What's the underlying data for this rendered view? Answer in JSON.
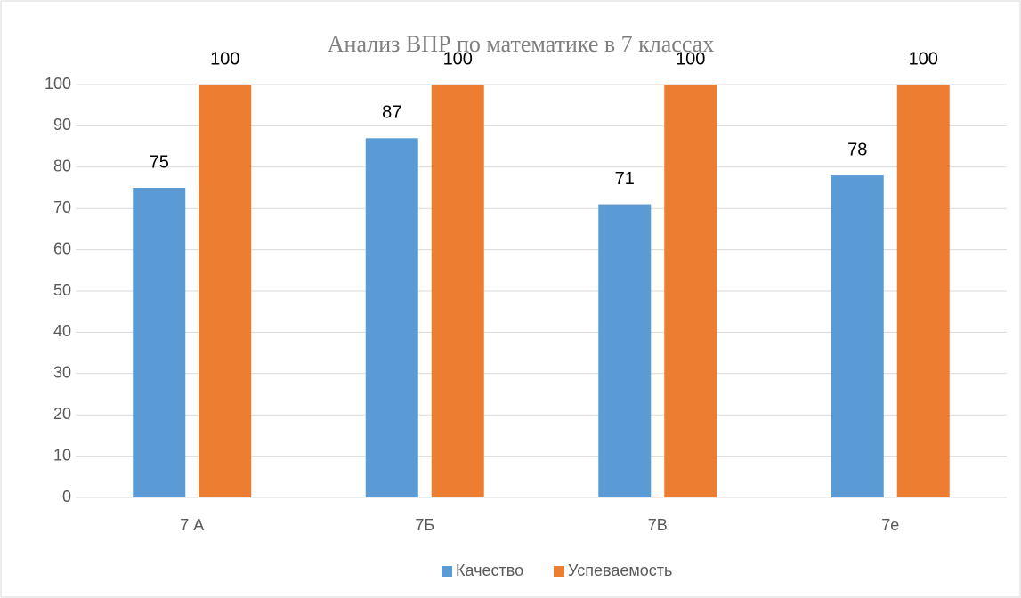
{
  "chart_data": {
    "type": "bar",
    "title": "Анализ ВПР по математике в 7 классах",
    "categories": [
      "7 А",
      "7Б",
      "7В",
      "7е"
    ],
    "series": [
      {
        "name": "Качество",
        "color": "#5b9bd5",
        "values": [
          75,
          87,
          71,
          78
        ]
      },
      {
        "name": "Успеваемость",
        "color": "#ed7d31",
        "values": [
          100,
          100,
          100,
          100
        ]
      }
    ],
    "ylim": [
      0,
      100
    ],
    "yticks": [
      0,
      10,
      20,
      30,
      40,
      50,
      60,
      70,
      80,
      90,
      100
    ],
    "grid": true,
    "legend": "bottom",
    "data_labels": true
  }
}
